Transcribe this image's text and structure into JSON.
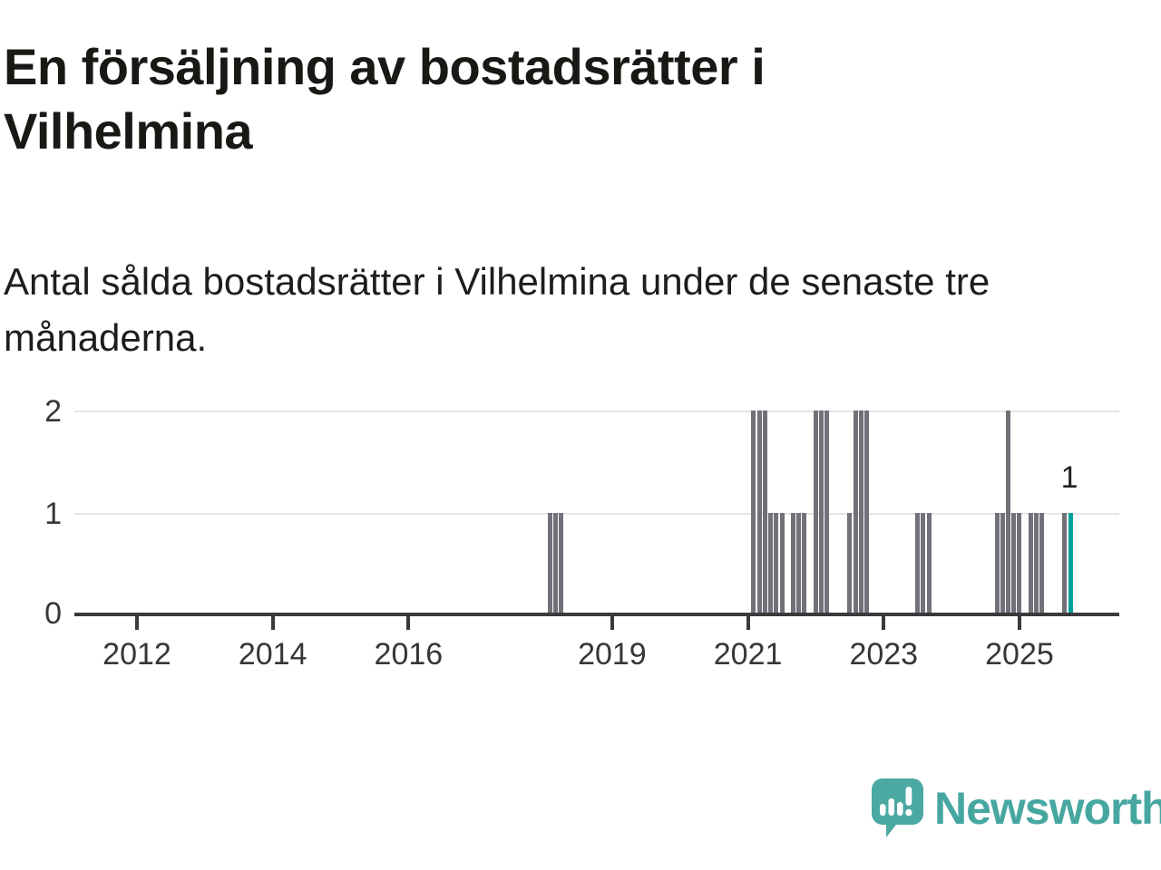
{
  "header": {
    "title": "En försäljning av bostadsrätter i Vilhelmina",
    "subtitle": "Antal sålda bostadsrätter i Vilhelmina under de senaste tre månaderna."
  },
  "chart_data": {
    "type": "bar",
    "title": "En försäljning av bostadsrätter i Vilhelmina",
    "subtitle": "Antal sålda bostadsrätter i Vilhelmina under de senaste tre månaderna.",
    "xlabel": "",
    "ylabel": "",
    "ylim": [
      0,
      2
    ],
    "y_ticks": [
      0,
      1,
      2
    ],
    "grid": "horizontal",
    "legend": "none",
    "bar_unit": "month",
    "x_range_years": [
      2011,
      2026
    ],
    "x_tick_labels": [
      "2012",
      "2014",
      "2016",
      "2019",
      "2021",
      "2023",
      "2025"
    ],
    "x_tick_years": [
      2012,
      2014,
      2016,
      2019,
      2021,
      2023,
      2025
    ],
    "bars": [
      {
        "date": "2018-02",
        "value": 1
      },
      {
        "date": "2018-03",
        "value": 1
      },
      {
        "date": "2018-04",
        "value": 1
      },
      {
        "date": "2021-02",
        "value": 2
      },
      {
        "date": "2021-03",
        "value": 2
      },
      {
        "date": "2021-04",
        "value": 2
      },
      {
        "date": "2021-05",
        "value": 1
      },
      {
        "date": "2021-06",
        "value": 1
      },
      {
        "date": "2021-07",
        "value": 1
      },
      {
        "date": "2021-09",
        "value": 1
      },
      {
        "date": "2021-10",
        "value": 1
      },
      {
        "date": "2021-11",
        "value": 1
      },
      {
        "date": "2022-01",
        "value": 2
      },
      {
        "date": "2022-02",
        "value": 2
      },
      {
        "date": "2022-03",
        "value": 2
      },
      {
        "date": "2022-07",
        "value": 1
      },
      {
        "date": "2022-08",
        "value": 2
      },
      {
        "date": "2022-09",
        "value": 2
      },
      {
        "date": "2022-10",
        "value": 2
      },
      {
        "date": "2023-07",
        "value": 1
      },
      {
        "date": "2023-08",
        "value": 1
      },
      {
        "date": "2023-09",
        "value": 1
      },
      {
        "date": "2024-09",
        "value": 1
      },
      {
        "date": "2024-10",
        "value": 1
      },
      {
        "date": "2024-11",
        "value": 2
      },
      {
        "date": "2024-12",
        "value": 1
      },
      {
        "date": "2025-01",
        "value": 1
      },
      {
        "date": "2025-03",
        "value": 1
      },
      {
        "date": "2025-04",
        "value": 1
      },
      {
        "date": "2025-05",
        "value": 1
      },
      {
        "date": "2025-09",
        "value": 1
      },
      {
        "date": "2025-10",
        "value": 1,
        "highlight": true,
        "label": "1"
      }
    ],
    "colors": {
      "bar": "#71717a",
      "highlight": "#00a09b",
      "grid": "#e4e4e4",
      "axis": "#3a3a3a",
      "tick_text": "#363636",
      "value_label": "#222220"
    }
  },
  "footer": {
    "brand": "Newsworthy",
    "brand_color": "#46a7a1"
  }
}
